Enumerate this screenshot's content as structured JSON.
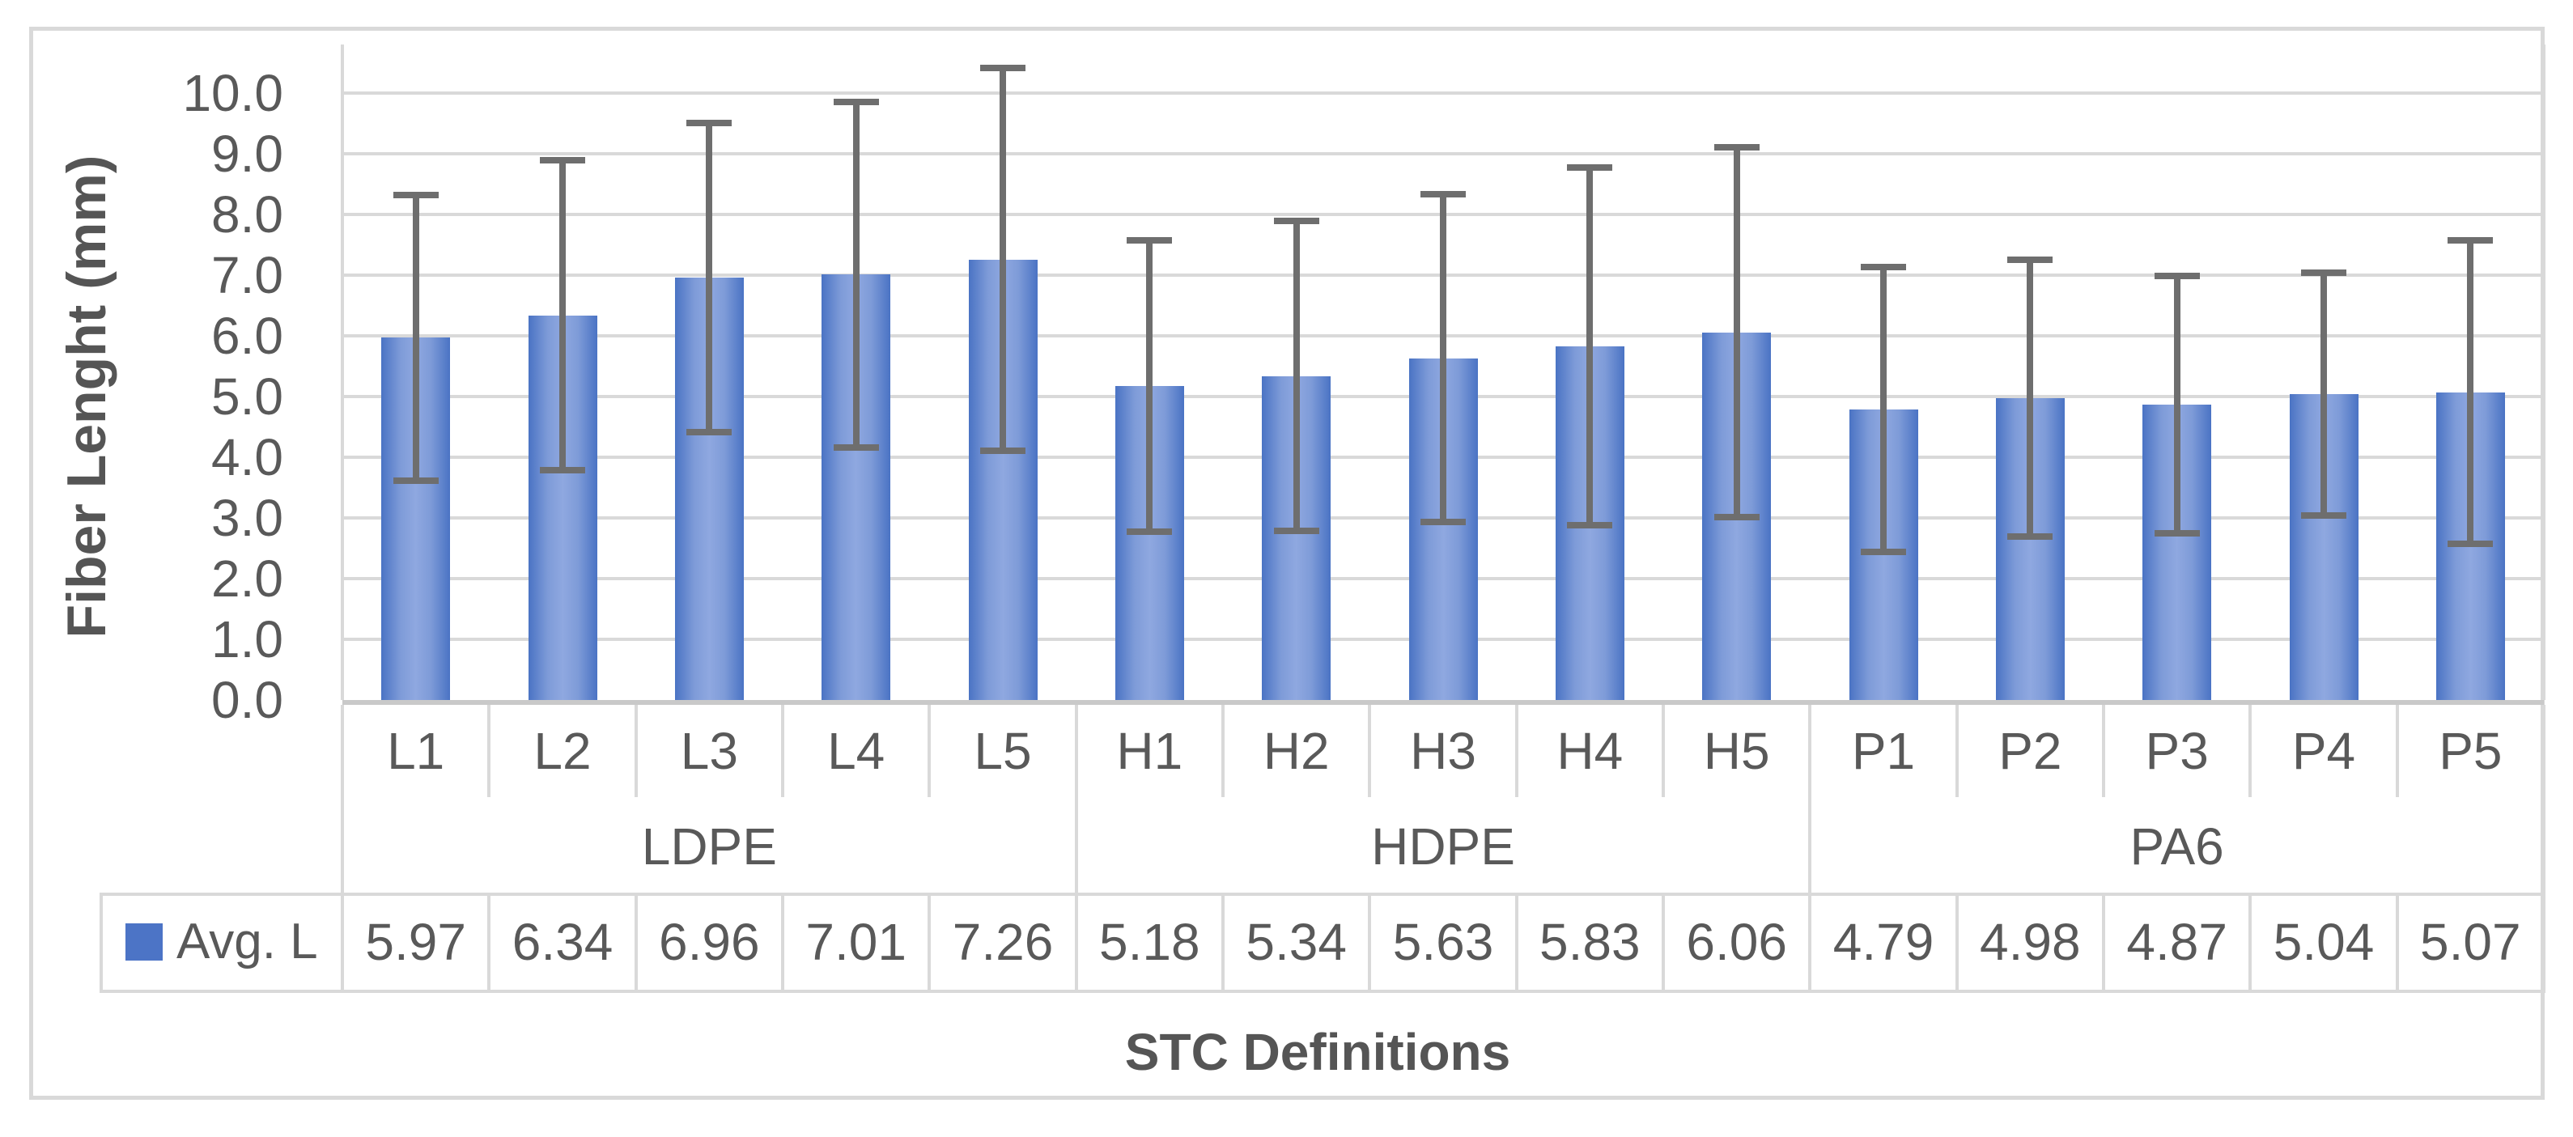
{
  "chart_data": {
    "type": "bar",
    "title": "",
    "ylabel": "Fiber Lenght (mm)",
    "xlabel": "STC Definitions",
    "ylim": [
      0.0,
      10.0
    ],
    "ytick_step": 1.0,
    "ytick_labels": [
      "0.0",
      "1.0",
      "2.0",
      "3.0",
      "4.0",
      "5.0",
      "6.0",
      "7.0",
      "8.0",
      "9.0",
      "10.0"
    ],
    "grid": true,
    "legend_position": "bottom-table-left",
    "categories": [
      "L1",
      "L2",
      "L3",
      "L4",
      "L5",
      "H1",
      "H2",
      "H3",
      "H4",
      "H5",
      "P1",
      "P2",
      "P3",
      "P4",
      "P5"
    ],
    "groups": [
      {
        "label": "LDPE",
        "categories": [
          "L1",
          "L2",
          "L3",
          "L4",
          "L5"
        ]
      },
      {
        "label": "HDPE",
        "categories": [
          "H1",
          "H2",
          "H3",
          "H4",
          "H5"
        ]
      },
      {
        "label": "PA6",
        "categories": [
          "P1",
          "P2",
          "P3",
          "P4",
          "P5"
        ]
      }
    ],
    "series": [
      {
        "name": "Avg. L",
        "values": [
          5.97,
          6.34,
          6.96,
          7.01,
          7.26,
          5.18,
          5.34,
          5.63,
          5.83,
          6.06,
          4.79,
          4.98,
          4.87,
          5.04,
          5.07
        ],
        "value_labels": [
          "5.97",
          "6.34",
          "6.96",
          "7.01",
          "7.26",
          "5.18",
          "5.34",
          "5.63",
          "5.83",
          "6.06",
          "4.79",
          "4.98",
          "4.87",
          "5.04",
          "5.07"
        ],
        "error_bars": [
          2.35,
          2.55,
          2.55,
          2.85,
          3.15,
          2.4,
          2.55,
          2.7,
          2.95,
          3.05,
          2.35,
          2.28,
          2.12,
          2.0,
          2.5
        ]
      }
    ]
  },
  "colors": {
    "bar_edge": "#4A73C4",
    "bar_center": "#8FA8E0",
    "error_bar": "#6E6E6E",
    "gridline": "#D9D9D9",
    "axis_line": "#C9C9C9",
    "table_border": "#D9D9D9",
    "frame_border": "#D9D9D9",
    "text": "#595959",
    "legend_swatch": "#4C74C6"
  }
}
